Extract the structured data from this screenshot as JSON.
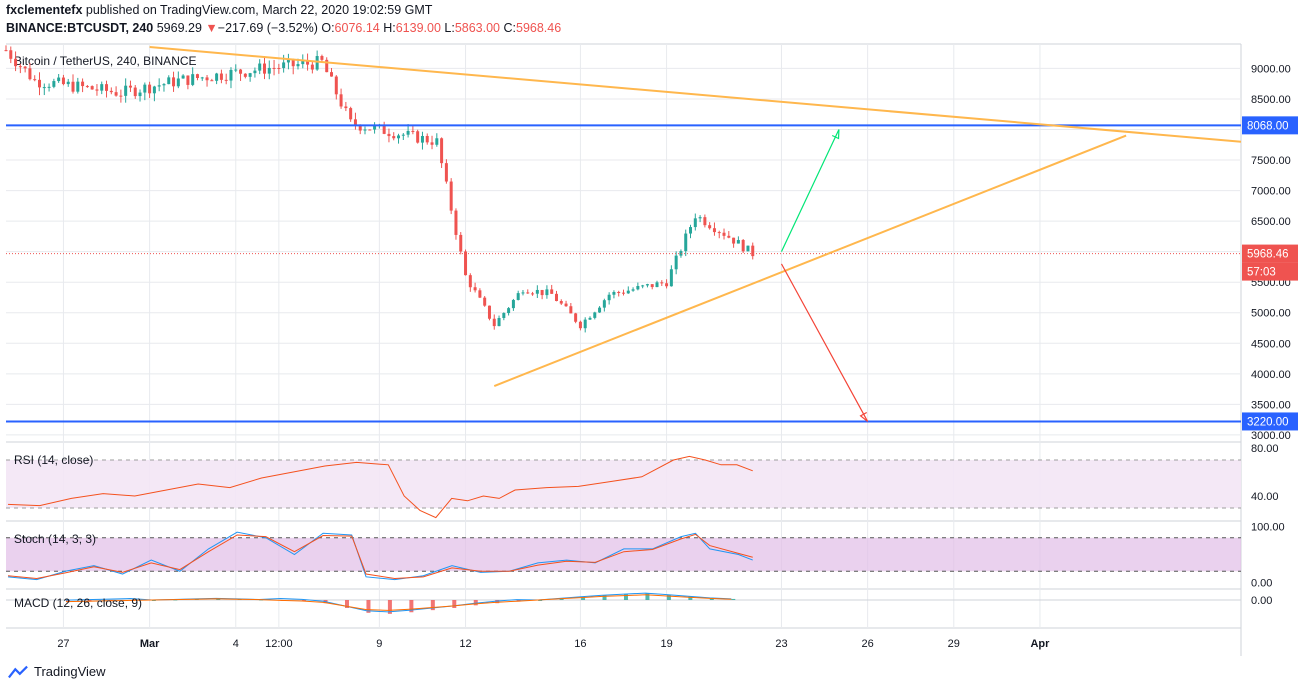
{
  "header": {
    "publisher": "fxclementefx",
    "published_text": "published on TradingView.com, March 22, 2020 19:02:59 GMT",
    "symbol": "BINANCE:BTCUSDT, 240",
    "last_price": "5969.29",
    "change_arrow": "▼",
    "change": "−217.69 (−3.52%)",
    "o_label": "O:",
    "o_value": "6076.14",
    "h_label": "H:",
    "h_value": "6139.00",
    "l_label": "L:",
    "l_value": "5863.00",
    "c_label": "C:",
    "c_value": "5968.46"
  },
  "footer": {
    "brand": "TradingView"
  },
  "colors": {
    "up": "#26a69a",
    "down": "#ef5350",
    "grid": "#e8eaee",
    "level_line": "#2962ff",
    "trendline": "#ffb74d",
    "rsi": "#f4511e",
    "stoch_k": "#2196f3",
    "stoch_d": "#f4511e",
    "band": "#e1bee7"
  },
  "chart_data": [
    {
      "type": "candlestick",
      "title": "Bitcoin / TetherUS, 240, BINANCE",
      "ylim": [
        2900,
        9400
      ],
      "y_ticks": [
        "9000.00",
        "8500.00",
        "8000.00",
        "7500.00",
        "7000.00",
        "6500.00",
        "6000.00",
        "5500.00",
        "5000.00",
        "4500.00",
        "4000.00",
        "3500.00",
        "3000.00"
      ],
      "x_ticks": [
        "27",
        "Mar",
        "4",
        "12:00",
        "9",
        "12",
        "16",
        "19",
        "23",
        "26",
        "29",
        "Apr"
      ],
      "x_range_days": [
        "2020-02-25",
        "2020-04-08"
      ],
      "series": [
        {
          "key_points": [
            {
              "date": "2020-02-25",
              "close": 9300
            },
            {
              "date": "2020-02-26",
              "close": 8800
            },
            {
              "date": "2020-02-29",
              "close": 8600
            },
            {
              "date": "2020-03-02",
              "close": 8800
            },
            {
              "date": "2020-03-05",
              "close": 9000
            },
            {
              "date": "2020-03-07",
              "close": 9100
            },
            {
              "date": "2020-03-08",
              "close": 8100
            },
            {
              "date": "2020-03-10",
              "close": 7900
            },
            {
              "date": "2020-03-11",
              "close": 7800
            },
            {
              "date": "2020-03-12",
              "close": 5600
            },
            {
              "date": "2020-03-13",
              "close": 4800
            },
            {
              "date": "2020-03-14",
              "close": 5400
            },
            {
              "date": "2020-03-15",
              "close": 5300
            },
            {
              "date": "2020-03-16",
              "close": 4800
            },
            {
              "date": "2020-03-17",
              "close": 5300
            },
            {
              "date": "2020-03-19",
              "close": 5500
            },
            {
              "date": "2020-03-20",
              "close": 6600
            },
            {
              "date": "2020-03-21",
              "close": 6300
            },
            {
              "date": "2020-03-22",
              "close": 5968
            }
          ]
        }
      ],
      "price_labels": [
        {
          "text": "8068.00",
          "value": 8068
        },
        {
          "text": "5968.46",
          "value": 5968.46
        },
        {
          "text": "57:03",
          "value": 5968.46
        },
        {
          "text": "3220.00",
          "value": 3220
        }
      ],
      "horizontal_levels": [
        8068,
        3220
      ],
      "drawings": [
        {
          "name": "descending-trendline",
          "from": {
            "date": "2020-03-01",
            "price": 9350
          },
          "to": {
            "date": "2020-04-08",
            "price": 7800
          }
        },
        {
          "name": "ascending-trendline",
          "from": {
            "date": "2020-03-13",
            "price": 3800
          },
          "to": {
            "date": "2020-04-04",
            "price": 7900
          }
        },
        {
          "name": "bullish-arrow",
          "from": {
            "date": "2020-03-23",
            "price": 6000
          },
          "to": {
            "date": "2020-03-25",
            "price": 8000
          },
          "color": "#00e676"
        },
        {
          "name": "bearish-arrow",
          "from": {
            "date": "2020-03-23",
            "price": 5800
          },
          "to": {
            "date": "2020-03-26",
            "price": 3220
          },
          "color": "#f44336"
        }
      ]
    },
    {
      "type": "line",
      "title": "RSI (14, close)",
      "ylim": [
        20,
        85
      ],
      "y_ticks": [
        "80.00",
        "40.00"
      ],
      "band": [
        30,
        70
      ],
      "points": [
        [
          0,
          33
        ],
        [
          2,
          32
        ],
        [
          4,
          38
        ],
        [
          6,
          42
        ],
        [
          8,
          40
        ],
        [
          10,
          45
        ],
        [
          12,
          50
        ],
        [
          14,
          47
        ],
        [
          16,
          55
        ],
        [
          18,
          60
        ],
        [
          20,
          65
        ],
        [
          22,
          68
        ],
        [
          24,
          66
        ],
        [
          25,
          40
        ],
        [
          26,
          28
        ],
        [
          27,
          22
        ],
        [
          28,
          38
        ],
        [
          29,
          36
        ],
        [
          30,
          40
        ],
        [
          31,
          38
        ],
        [
          32,
          45
        ],
        [
          34,
          47
        ],
        [
          36,
          48
        ],
        [
          38,
          52
        ],
        [
          40,
          56
        ],
        [
          42,
          70
        ],
        [
          43,
          73
        ],
        [
          44,
          70
        ],
        [
          45,
          66
        ],
        [
          46,
          66
        ],
        [
          47,
          61
        ]
      ]
    },
    {
      "type": "line",
      "title": "Stoch (14, 3, 3)",
      "ylim": [
        -10,
        110
      ],
      "y_ticks": [
        "100.00",
        "0.00"
      ],
      "band": [
        20,
        80
      ],
      "series": [
        {
          "values": [
            [
              0,
              10
            ],
            [
              2,
              5
            ],
            [
              4,
              20
            ],
            [
              6,
              30
            ],
            [
              8,
              15
            ],
            [
              10,
              40
            ],
            [
              12,
              20
            ],
            [
              14,
              60
            ],
            [
              16,
              90
            ],
            [
              18,
              80
            ],
            [
              20,
              50
            ],
            [
              22,
              88
            ],
            [
              24,
              85
            ],
            [
              25,
              10
            ],
            [
              27,
              5
            ],
            [
              29,
              12
            ],
            [
              31,
              30
            ],
            [
              33,
              18
            ],
            [
              35,
              20
            ],
            [
              37,
              35
            ],
            [
              39,
              40
            ],
            [
              41,
              35
            ],
            [
              43,
              60
            ],
            [
              45,
              60
            ],
            [
              47,
              82
            ],
            [
              48,
              88
            ],
            [
              49,
              60
            ],
            [
              51,
              50
            ],
            [
              52,
              40
            ]
          ]
        },
        {
          "values": [
            [
              0,
              12
            ],
            [
              2,
              7
            ],
            [
              4,
              17
            ],
            [
              6,
              28
            ],
            [
              8,
              18
            ],
            [
              10,
              35
            ],
            [
              12,
              23
            ],
            [
              14,
              55
            ],
            [
              16,
              85
            ],
            [
              18,
              82
            ],
            [
              20,
              55
            ],
            [
              22,
              84
            ],
            [
              24,
              83
            ],
            [
              25,
              15
            ],
            [
              27,
              7
            ],
            [
              29,
              10
            ],
            [
              31,
              26
            ],
            [
              33,
              20
            ],
            [
              35,
              20
            ],
            [
              37,
              31
            ],
            [
              39,
              38
            ],
            [
              41,
              36
            ],
            [
              43,
              55
            ],
            [
              45,
              59
            ],
            [
              47,
              78
            ],
            [
              48,
              86
            ],
            [
              49,
              66
            ],
            [
              51,
              52
            ],
            [
              52,
              45
            ]
          ]
        }
      ]
    },
    {
      "type": "histogram",
      "title": "MACD (12, 26, close, 9)",
      "y_ticks": [
        "0.00"
      ],
      "values": [
        -80,
        -60,
        -40,
        -20,
        0,
        20,
        40,
        60,
        40,
        20,
        -20,
        -50,
        -120,
        -300,
        -480,
        -520,
        -460,
        -380,
        -300,
        -200,
        -120,
        -60,
        0,
        60,
        120,
        180,
        220,
        260,
        200,
        140,
        80,
        40
      ]
    }
  ]
}
